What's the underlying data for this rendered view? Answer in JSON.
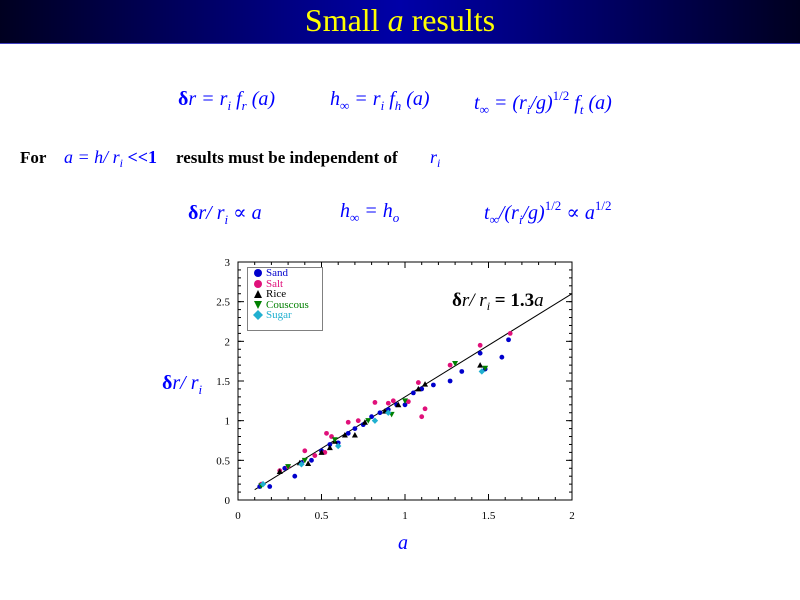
{
  "slide": {
    "title_pre": "Small ",
    "title_var": "a",
    "title_post": " results"
  },
  "equations": {
    "eq1": {
      "a": "δ",
      "b": "r = r",
      "c": "i",
      "d": " f",
      "e": "r",
      "f": " (a)"
    },
    "eq2": {
      "a": "h",
      "b": "∞",
      "c": " = r",
      "d": "i",
      "e": " f",
      "f": "h",
      "g": " (a)"
    },
    "eq3": {
      "a": "t",
      "b": "∞",
      "c": " = (r",
      "d": "i",
      "e": "/g)",
      "f": "1/2",
      "g": " f",
      "h": "t",
      "i": " (a)"
    }
  },
  "statement": {
    "for_label": "For",
    "cond_a": "a = h/ r",
    "cond_i": "i",
    "cond_b": " <<1",
    "rest": "results must be independent of",
    "var_r": "r",
    "var_i": "i"
  },
  "scalings": {
    "s1": {
      "a": "δ",
      "b": "r/ r",
      "c": "i",
      "d": " ∝ a"
    },
    "s2": {
      "a": "h",
      "b": "∞",
      "c": " = h",
      "d": "o"
    },
    "s3": {
      "a": "t",
      "b": "∞",
      "c": "/(r",
      "d": "i",
      "e": "/g)",
      "f": "1/2",
      "g": " ∝ a",
      "h": "1/2"
    }
  },
  "chart_data": {
    "type": "scatter",
    "xlabel": "a",
    "ylabel": {
      "a": "δ",
      "b": "r/ r",
      "c": "i"
    },
    "xlim": [
      0,
      2
    ],
    "ylim": [
      0,
      3
    ],
    "x_ticks": [
      "0",
      "0.5",
      "1",
      "1.5",
      "2"
    ],
    "y_ticks": [
      "0",
      "0.5",
      "1",
      "1.5",
      "2",
      "2.5",
      "3"
    ],
    "grid": false,
    "legend_position": "top-left",
    "fit": {
      "label_a": "δ",
      "label_b": "r/ r",
      "label_c": "i",
      "label_d": " = ",
      "label_e": "1.3",
      "label_f": "a",
      "slope": 1.3,
      "x_range": [
        0.1,
        2
      ]
    },
    "series": [
      {
        "name": "Sand",
        "color": "#0000cc",
        "marker": "circle",
        "x": [
          0.13,
          0.19,
          0.28,
          0.34,
          0.38,
          0.44,
          0.5,
          0.55,
          0.6,
          0.66,
          0.7,
          0.75,
          0.8,
          0.85,
          0.9,
          0.95,
          1.0,
          1.05,
          1.1,
          1.17,
          1.27,
          1.34,
          1.45,
          1.48,
          1.58,
          1.62
        ],
        "y": [
          0.17,
          0.17,
          0.4,
          0.3,
          0.47,
          0.5,
          0.62,
          0.7,
          0.72,
          0.84,
          0.9,
          0.95,
          1.05,
          1.1,
          1.14,
          1.2,
          1.2,
          1.35,
          1.4,
          1.45,
          1.5,
          1.62,
          1.85,
          1.65,
          1.8,
          2.02
        ]
      },
      {
        "name": "Salt",
        "color": "#e0107a",
        "marker": "circle",
        "x": [
          0.14,
          0.25,
          0.3,
          0.4,
          0.46,
          0.52,
          0.53,
          0.56,
          0.66,
          0.72,
          0.82,
          0.9,
          0.93,
          1.02,
          1.08,
          1.1,
          1.12,
          1.27,
          1.45,
          1.63
        ],
        "y": [
          0.2,
          0.37,
          0.42,
          0.62,
          0.56,
          0.6,
          0.84,
          0.8,
          0.98,
          1.0,
          1.23,
          1.22,
          1.25,
          1.24,
          1.48,
          1.05,
          1.15,
          1.7,
          1.95,
          2.1
        ]
      },
      {
        "name": "Rice",
        "color": "#000000",
        "marker": "triangle-up",
        "x": [
          0.25,
          0.37,
          0.42,
          0.5,
          0.55,
          0.58,
          0.64,
          0.7,
          0.76,
          0.88,
          0.96,
          1.08,
          1.12,
          1.45
        ],
        "y": [
          0.36,
          0.47,
          0.46,
          0.6,
          0.66,
          0.74,
          0.82,
          0.82,
          0.98,
          1.12,
          1.2,
          1.4,
          1.46,
          1.7
        ]
      },
      {
        "name": "Couscous",
        "color": "#008000",
        "marker": "triangle-down",
        "x": [
          0.14,
          0.3,
          0.4,
          0.58,
          0.78,
          0.92,
          1.0,
          1.3,
          1.48
        ],
        "y": [
          0.18,
          0.42,
          0.5,
          0.76,
          1.0,
          1.08,
          1.25,
          1.72,
          1.66
        ]
      },
      {
        "name": "Sugar",
        "color": "#20b0d0",
        "marker": "diamond",
        "x": [
          0.15,
          0.38,
          0.6,
          0.82,
          0.9,
          1.46
        ],
        "y": [
          0.2,
          0.45,
          0.68,
          1.0,
          1.1,
          1.62
        ]
      }
    ]
  }
}
